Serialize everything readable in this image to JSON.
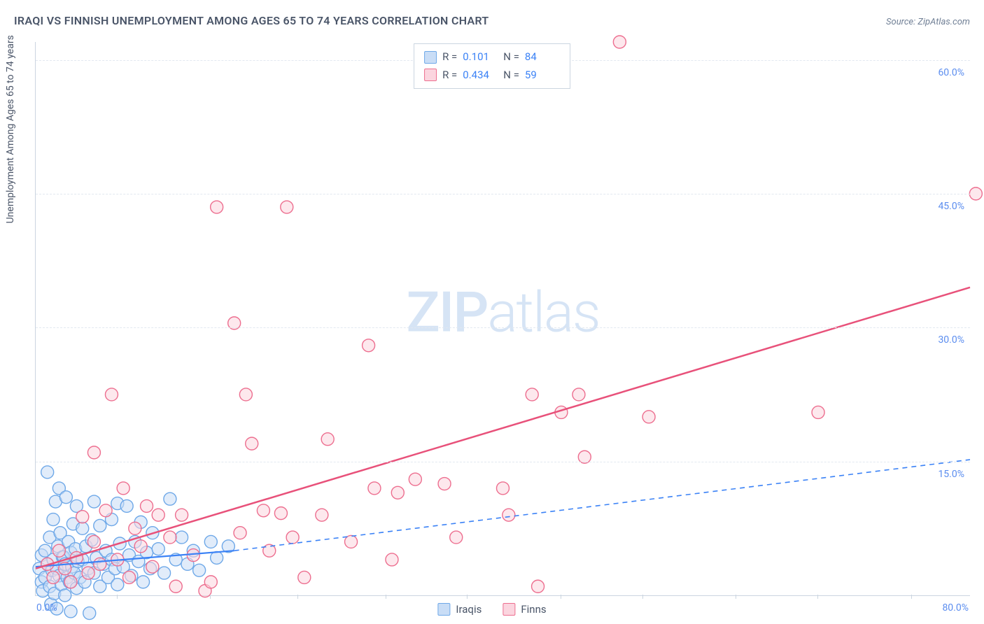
{
  "title": "IRAQI VS FINNISH UNEMPLOYMENT AMONG AGES 65 TO 74 YEARS CORRELATION CHART",
  "source": "Source: ZipAtlas.com",
  "ylabel": "Unemployment Among Ages 65 to 74 years",
  "watermark": {
    "bold": "ZIP",
    "light": "atlas"
  },
  "chart": {
    "type": "scatter",
    "background_color": "#ffffff",
    "grid_color": "#e2e8f0",
    "axis_color": "#cbd5e0",
    "tick_label_color": "#5b8def",
    "text_color": "#4a5568",
    "xlim": [
      0,
      80
    ],
    "ylim": [
      0,
      62
    ],
    "yticks": [
      15,
      30,
      45,
      60
    ],
    "ytick_labels": [
      "15.0%",
      "30.0%",
      "45.0%",
      "60.0%"
    ],
    "x_origin_label": "0.0%",
    "x_max_label": "80.0%",
    "xtick_marks": [
      7,
      15,
      22.5,
      30,
      37,
      45,
      52,
      60,
      67,
      75
    ],
    "marker_radius": 9,
    "marker_stroke_width": 1.4,
    "series": [
      {
        "name": "Iraqis",
        "fill": "#c9ddf6",
        "stroke": "#6ea8e8",
        "fill_opacity": 0.55,
        "R": "0.101",
        "N": "84",
        "trend": {
          "solid_end_x": 17,
          "dash_end_x": 80,
          "y0": 3.2,
          "y_solid_end": 5.0,
          "y_dash_end": 15.2,
          "color": "#3b82f6",
          "width": 2.2
        },
        "points": [
          [
            0.3,
            3.0
          ],
          [
            0.5,
            1.5
          ],
          [
            0.5,
            4.5
          ],
          [
            0.6,
            0.5
          ],
          [
            0.8,
            2.0
          ],
          [
            0.8,
            5.0
          ],
          [
            1.0,
            3.5
          ],
          [
            1.0,
            13.8
          ],
          [
            1.2,
            1.0
          ],
          [
            1.2,
            6.5
          ],
          [
            1.3,
            -1.0
          ],
          [
            1.4,
            2.8
          ],
          [
            1.5,
            4.0
          ],
          [
            1.5,
            8.5
          ],
          [
            1.6,
            0.2
          ],
          [
            1.7,
            10.5
          ],
          [
            1.8,
            3.0
          ],
          [
            1.8,
            -1.5
          ],
          [
            1.9,
            5.5
          ],
          [
            2.0,
            2.2
          ],
          [
            2.0,
            12.0
          ],
          [
            2.1,
            7.0
          ],
          [
            2.2,
            1.2
          ],
          [
            2.3,
            4.3
          ],
          [
            2.4,
            4.3
          ],
          [
            2.5,
            0.0
          ],
          [
            2.5,
            3.5
          ],
          [
            2.6,
            11.0
          ],
          [
            2.7,
            2.0
          ],
          [
            2.8,
            6.0
          ],
          [
            2.9,
            1.5
          ],
          [
            3.0,
            4.8
          ],
          [
            3.0,
            -1.8
          ],
          [
            3.1,
            3.2
          ],
          [
            3.2,
            8.0
          ],
          [
            3.3,
            2.5
          ],
          [
            3.4,
            5.2
          ],
          [
            3.5,
            0.8
          ],
          [
            3.5,
            10.0
          ],
          [
            3.6,
            3.8
          ],
          [
            3.8,
            2.0
          ],
          [
            4.0,
            4.0
          ],
          [
            4.0,
            7.5
          ],
          [
            4.2,
            1.5
          ],
          [
            4.3,
            5.5
          ],
          [
            4.5,
            3.0
          ],
          [
            4.6,
            -2.0
          ],
          [
            4.8,
            6.2
          ],
          [
            5.0,
            2.5
          ],
          [
            5.0,
            10.5
          ],
          [
            5.2,
            4.2
          ],
          [
            5.5,
            1.0
          ],
          [
            5.5,
            7.8
          ],
          [
            5.8,
            3.5
          ],
          [
            6.0,
            5.0
          ],
          [
            6.2,
            2.0
          ],
          [
            6.5,
            8.5
          ],
          [
            6.5,
            4.0
          ],
          [
            6.8,
            3.0
          ],
          [
            7.0,
            10.3
          ],
          [
            7.0,
            1.2
          ],
          [
            7.2,
            5.8
          ],
          [
            7.5,
            3.2
          ],
          [
            7.8,
            10.0
          ],
          [
            8.0,
            4.5
          ],
          [
            8.2,
            2.2
          ],
          [
            8.5,
            6.0
          ],
          [
            8.8,
            3.8
          ],
          [
            9.0,
            8.2
          ],
          [
            9.2,
            1.5
          ],
          [
            9.5,
            4.8
          ],
          [
            9.8,
            3.0
          ],
          [
            10.0,
            7.0
          ],
          [
            10.5,
            5.2
          ],
          [
            11.0,
            2.5
          ],
          [
            11.5,
            10.8
          ],
          [
            12.0,
            4.0
          ],
          [
            12.5,
            6.5
          ],
          [
            13.0,
            3.5
          ],
          [
            13.5,
            5.0
          ],
          [
            14.0,
            2.8
          ],
          [
            15.0,
            6.0
          ],
          [
            15.5,
            4.2
          ],
          [
            16.5,
            5.5
          ]
        ]
      },
      {
        "name": "Finns",
        "fill": "#fbd5df",
        "stroke": "#ed6e8f",
        "fill_opacity": 0.55,
        "R": "0.434",
        "N": "59",
        "trend": {
          "solid_end_x": 80,
          "y0": 3.0,
          "y_solid_end": 34.5,
          "color": "#e8517a",
          "width": 2.5
        },
        "points": [
          [
            1.0,
            3.5
          ],
          [
            1.5,
            2.0
          ],
          [
            2.0,
            5.0
          ],
          [
            2.5,
            3.0
          ],
          [
            3.0,
            1.5
          ],
          [
            3.5,
            4.2
          ],
          [
            4.0,
            8.8
          ],
          [
            4.5,
            2.5
          ],
          [
            5.0,
            16.0
          ],
          [
            5.0,
            6.0
          ],
          [
            5.5,
            3.5
          ],
          [
            6.0,
            9.5
          ],
          [
            6.5,
            22.5
          ],
          [
            7.0,
            4.0
          ],
          [
            7.5,
            12.0
          ],
          [
            8.0,
            2.0
          ],
          [
            8.5,
            7.5
          ],
          [
            9.0,
            5.5
          ],
          [
            9.5,
            10.0
          ],
          [
            10.0,
            3.2
          ],
          [
            10.5,
            9.0
          ],
          [
            11.5,
            6.5
          ],
          [
            12.0,
            1.0
          ],
          [
            12.5,
            9.0
          ],
          [
            13.5,
            4.5
          ],
          [
            14.5,
            0.5
          ],
          [
            15.0,
            1.5
          ],
          [
            15.5,
            43.5
          ],
          [
            17.0,
            30.5
          ],
          [
            17.5,
            7.0
          ],
          [
            18.0,
            22.5
          ],
          [
            18.5,
            17.0
          ],
          [
            19.5,
            9.5
          ],
          [
            20.0,
            5.0
          ],
          [
            21.0,
            9.2
          ],
          [
            21.5,
            43.5
          ],
          [
            22.0,
            6.5
          ],
          [
            23.0,
            2.0
          ],
          [
            24.5,
            9.0
          ],
          [
            25.0,
            17.5
          ],
          [
            27.0,
            6.0
          ],
          [
            28.5,
            28.0
          ],
          [
            29.0,
            12.0
          ],
          [
            30.5,
            4.0
          ],
          [
            31.0,
            11.5
          ],
          [
            32.5,
            13.0
          ],
          [
            35.0,
            12.5
          ],
          [
            36.0,
            6.5
          ],
          [
            40.0,
            12.0
          ],
          [
            40.5,
            9.0
          ],
          [
            42.5,
            22.5
          ],
          [
            43.0,
            1.0
          ],
          [
            45.0,
            20.5
          ],
          [
            46.5,
            22.5
          ],
          [
            47.0,
            15.5
          ],
          [
            50.0,
            62.0
          ],
          [
            52.5,
            20.0
          ],
          [
            67.0,
            20.5
          ],
          [
            80.5,
            45.0
          ]
        ]
      }
    ]
  },
  "legend_bottom": [
    {
      "label": "Iraqis",
      "fill": "#c9ddf6",
      "stroke": "#6ea8e8"
    },
    {
      "label": "Finns",
      "fill": "#fbd5df",
      "stroke": "#ed6e8f"
    }
  ]
}
